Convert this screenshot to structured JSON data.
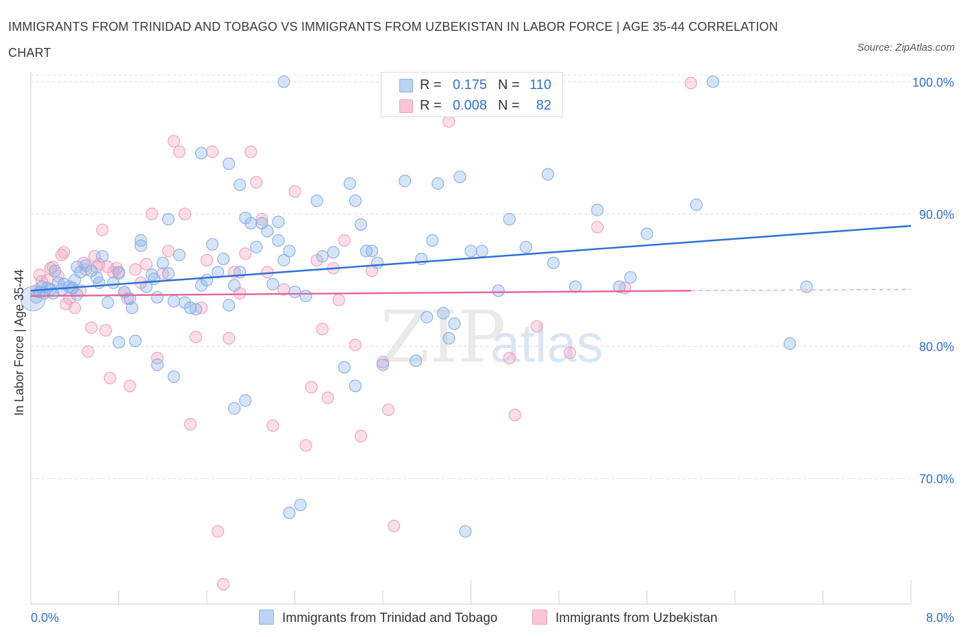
{
  "header": {
    "title": "IMMIGRANTS FROM TRINIDAD AND TOBAGO VS IMMIGRANTS FROM UZBEKISTAN IN LABOR FORCE | AGE 35-44 CORRELATION CHART",
    "source": "Source: ZipAtlas.com"
  },
  "legend": {
    "series1": {
      "r_label": "R =",
      "r_value": "0.175",
      "n_label": "N =",
      "n_value": "110"
    },
    "series2": {
      "r_label": "R =",
      "r_value": "0.008",
      "n_label": "N =",
      "n_value": "82"
    }
  },
  "watermark": {
    "zip": "ZIP",
    "atlas": "atlas"
  },
  "chart_data": {
    "type": "scatter",
    "title": "IMMIGRANTS FROM TRINIDAD AND TOBAGO VS IMMIGRANTS FROM UZBEKISTAN IN LABOR FORCE | AGE 35-44 CORRELATION CHART",
    "xlabel": "",
    "ylabel": "In Labor Force | Age 35-44",
    "xlim": [
      0,
      8
    ],
    "ylim": [
      60.5,
      101
    ],
    "x_tick_labels": [
      "0.0%",
      "8.0%"
    ],
    "y_ticks": [
      70,
      80,
      90,
      100
    ],
    "y_tick_labels": [
      "70.0%",
      "80.0%",
      "90.0%",
      "100.0%"
    ],
    "grid": true,
    "legend_placement": "top-center",
    "colors": {
      "series1": "#8ab3e8",
      "series1_line": "#2f6fd4",
      "series2": "#f2a3bd",
      "series2_line": "#e5679a",
      "tick_text": "#2f6fd4"
    },
    "series": [
      {
        "name": "Immigrants from Trinidad and Tobago",
        "r": 0.175,
        "n": 110,
        "trend": {
          "x": [
            0,
            8
          ],
          "y": [
            84.2,
            89.1
          ]
        },
        "points": [
          [
            0.05,
            83.7
          ],
          [
            0.08,
            84.1
          ],
          [
            0.1,
            84.5
          ],
          [
            0.12,
            84.0
          ],
          [
            0.15,
            84.4
          ],
          [
            0.18,
            84.3
          ],
          [
            0.2,
            84.0
          ],
          [
            0.22,
            85.7
          ],
          [
            0.25,
            84.8
          ],
          [
            0.28,
            84.3
          ],
          [
            0.3,
            84.7
          ],
          [
            0.35,
            84.5
          ],
          [
            0.38,
            84.4
          ],
          [
            0.4,
            85.0
          ],
          [
            0.42,
            83.9
          ],
          [
            0.45,
            85.6
          ],
          [
            0.42,
            86.0
          ],
          [
            0.5,
            86.1
          ],
          [
            0.55,
            85.7
          ],
          [
            0.6,
            85.2
          ],
          [
            0.62,
            84.8
          ],
          [
            0.65,
            86.8
          ],
          [
            0.7,
            83.3
          ],
          [
            0.75,
            84.8
          ],
          [
            0.8,
            85.6
          ],
          [
            0.85,
            84.1
          ],
          [
            0.9,
            83.6
          ],
          [
            0.92,
            82.9
          ],
          [
            0.95,
            80.4
          ],
          [
            1.0,
            88.0
          ],
          [
            1.05,
            84.5
          ],
          [
            1.1,
            85.4
          ],
          [
            1.12,
            85.1
          ],
          [
            1.15,
            83.7
          ],
          [
            1.2,
            86.3
          ],
          [
            1.25,
            85.5
          ],
          [
            1.3,
            83.4
          ],
          [
            1.35,
            86.9
          ],
          [
            1.4,
            83.3
          ],
          [
            1.45,
            82.9
          ],
          [
            1.5,
            82.8
          ],
          [
            1.55,
            84.6
          ],
          [
            1.6,
            85.0
          ],
          [
            1.65,
            87.7
          ],
          [
            1.7,
            85.6
          ],
          [
            1.75,
            86.6
          ],
          [
            1.8,
            83.1
          ],
          [
            1.85,
            84.6
          ],
          [
            1.9,
            85.6
          ],
          [
            1.95,
            89.7
          ],
          [
            2.0,
            89.3
          ],
          [
            2.05,
            87.5
          ],
          [
            2.1,
            89.3
          ],
          [
            2.15,
            88.7
          ],
          [
            2.2,
            84.7
          ],
          [
            2.25,
            88.0
          ],
          [
            2.3,
            86.5
          ],
          [
            2.35,
            87.2
          ],
          [
            2.4,
            84.1
          ],
          [
            1.55,
            94.6
          ],
          [
            1.8,
            93.8
          ],
          [
            1.9,
            92.2
          ],
          [
            2.6,
            91.0
          ],
          [
            2.25,
            89.4
          ],
          [
            1.25,
            89.6
          ],
          [
            1.0,
            87.6
          ],
          [
            0.8,
            80.3
          ],
          [
            1.15,
            78.6
          ],
          [
            1.3,
            77.7
          ],
          [
            1.85,
            75.3
          ],
          [
            1.95,
            75.9
          ],
          [
            2.35,
            67.4
          ],
          [
            2.45,
            68.0
          ],
          [
            2.5,
            83.8
          ],
          [
            2.65,
            86.8
          ],
          [
            2.75,
            87.1
          ],
          [
            2.9,
            92.3
          ],
          [
            2.95,
            91.0
          ],
          [
            3.0,
            89.2
          ],
          [
            3.05,
            87.2
          ],
          [
            3.15,
            86.3
          ],
          [
            2.85,
            78.4
          ],
          [
            2.95,
            77.0
          ],
          [
            3.2,
            78.6
          ],
          [
            3.1,
            87.2
          ],
          [
            3.4,
            92.5
          ],
          [
            3.55,
            86.6
          ],
          [
            3.6,
            82.2
          ],
          [
            3.75,
            82.5
          ],
          [
            3.65,
            88.0
          ],
          [
            3.7,
            92.3
          ],
          [
            3.9,
            92.8
          ],
          [
            3.8,
            80.6
          ],
          [
            3.85,
            81.7
          ],
          [
            4.0,
            87.2
          ],
          [
            4.1,
            87.2
          ],
          [
            4.25,
            84.2
          ],
          [
            4.35,
            89.6
          ],
          [
            4.5,
            87.5
          ],
          [
            4.7,
            93.0
          ],
          [
            4.75,
            86.3
          ],
          [
            4.95,
            84.5
          ],
          [
            5.35,
            84.5
          ],
          [
            5.45,
            85.2
          ],
          [
            5.15,
            90.3
          ],
          [
            5.6,
            88.5
          ],
          [
            6.05,
            90.7
          ],
          [
            6.9,
            80.2
          ],
          [
            7.05,
            84.5
          ],
          [
            3.5,
            78.9
          ],
          [
            3.95,
            66.0
          ],
          [
            2.3,
            100.0
          ],
          [
            6.2,
            100.0
          ]
        ]
      },
      {
        "name": "Immigrants from Uzbekistan",
        "r": 0.008,
        "n": 82,
        "trend": {
          "x": [
            0,
            6
          ],
          "y": [
            83.8,
            84.2
          ]
        },
        "dashed_trend": {
          "x": [
            6,
            8
          ],
          "y": [
            84.2,
            84.3
          ]
        },
        "points": [
          [
            0.05,
            84.2
          ],
          [
            0.08,
            85.4
          ],
          [
            0.1,
            84.9
          ],
          [
            0.15,
            85.0
          ],
          [
            0.18,
            85.9
          ],
          [
            0.2,
            86.0
          ],
          [
            0.25,
            85.3
          ],
          [
            0.28,
            86.9
          ],
          [
            0.3,
            87.1
          ],
          [
            0.32,
            83.2
          ],
          [
            0.35,
            83.6
          ],
          [
            0.38,
            84.4
          ],
          [
            0.4,
            82.9
          ],
          [
            0.45,
            84.2
          ],
          [
            0.48,
            86.3
          ],
          [
            0.5,
            85.8
          ],
          [
            0.52,
            79.6
          ],
          [
            0.55,
            81.4
          ],
          [
            0.58,
            86.8
          ],
          [
            0.6,
            86.0
          ],
          [
            0.62,
            86.2
          ],
          [
            0.65,
            88.8
          ],
          [
            0.68,
            81.2
          ],
          [
            0.7,
            86.0
          ],
          [
            0.72,
            77.6
          ],
          [
            0.75,
            85.6
          ],
          [
            0.78,
            85.9
          ],
          [
            0.8,
            85.5
          ],
          [
            0.85,
            84.1
          ],
          [
            0.88,
            83.6
          ],
          [
            0.9,
            77.0
          ],
          [
            0.95,
            85.8
          ],
          [
            1.0,
            84.8
          ],
          [
            1.05,
            86.2
          ],
          [
            1.1,
            90.0
          ],
          [
            1.15,
            79.1
          ],
          [
            1.2,
            85.5
          ],
          [
            1.25,
            87.2
          ],
          [
            1.3,
            95.5
          ],
          [
            1.35,
            94.7
          ],
          [
            1.4,
            90.0
          ],
          [
            1.45,
            74.1
          ],
          [
            1.5,
            80.7
          ],
          [
            1.55,
            82.9
          ],
          [
            1.6,
            86.5
          ],
          [
            1.65,
            94.7
          ],
          [
            1.7,
            66.0
          ],
          [
            1.75,
            62.0
          ],
          [
            1.8,
            80.6
          ],
          [
            1.85,
            85.6
          ],
          [
            1.9,
            84.0
          ],
          [
            1.95,
            87.0
          ],
          [
            2.0,
            94.7
          ],
          [
            2.05,
            92.4
          ],
          [
            2.1,
            89.6
          ],
          [
            2.15,
            85.6
          ],
          [
            2.2,
            74.0
          ],
          [
            2.3,
            84.3
          ],
          [
            2.4,
            91.7
          ],
          [
            2.5,
            72.5
          ],
          [
            2.55,
            76.9
          ],
          [
            2.6,
            86.5
          ],
          [
            2.65,
            81.3
          ],
          [
            2.7,
            76.1
          ],
          [
            2.75,
            85.9
          ],
          [
            2.8,
            83.5
          ],
          [
            2.85,
            88.0
          ],
          [
            2.95,
            80.1
          ],
          [
            3.0,
            73.2
          ],
          [
            3.1,
            85.7
          ],
          [
            3.2,
            78.8
          ],
          [
            3.25,
            75.2
          ],
          [
            3.3,
            66.4
          ],
          [
            3.35,
            100.0
          ],
          [
            3.8,
            97.0
          ],
          [
            4.35,
            79.1
          ],
          [
            4.4,
            74.8
          ],
          [
            4.6,
            81.5
          ],
          [
            4.9,
            79.5
          ],
          [
            5.15,
            89.0
          ],
          [
            5.4,
            84.4
          ],
          [
            6.0,
            99.9
          ]
        ]
      }
    ]
  },
  "bottom_legend": {
    "series1_label": "Immigrants from Trinidad and Tobago",
    "series2_label": "Immigrants from Uzbekistan"
  }
}
